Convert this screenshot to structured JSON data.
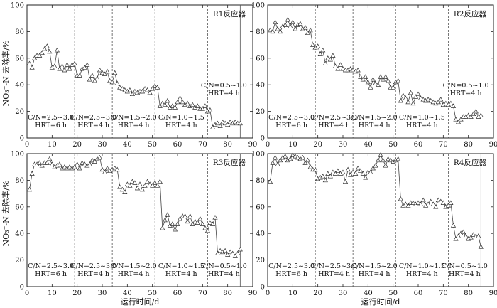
{
  "figure": {
    "ylabel": "NO₃⁻-N 去除率/%",
    "xlabel": "运行时间/d"
  },
  "chart_data": [
    {
      "type": "line",
      "title": "R1反应器",
      "xlim": [
        0,
        90
      ],
      "ylim": [
        0,
        100
      ],
      "xticks": [
        "0",
        "10",
        "20",
        "30",
        "40",
        "50",
        "60",
        "70",
        "80",
        "90"
      ],
      "yticks": [
        "0",
        "20",
        "40",
        "60",
        "80",
        "100"
      ],
      "phase_boundaries": [
        19,
        34,
        51,
        72,
        85
      ],
      "phases": [
        {
          "cn": "C/N=2.5~3.0",
          "hrt": "HRT=6 h",
          "x": 9.5,
          "y": 14
        },
        {
          "cn": "C/N=2.5~3.0",
          "hrt": "HRT=4 h",
          "x": 26.5,
          "y": 14
        },
        {
          "cn": "C/N=1.5~2.0",
          "hrt": "HRT=4 h",
          "x": 42.5,
          "y": 14
        },
        {
          "cn": "C/N=1.0~1.5",
          "hrt": "HRT=4 h",
          "x": 61.5,
          "y": 14
        },
        {
          "cn": "C/N=0.5~1.0",
          "hrt": "HRT=4 h",
          "x": 78.5,
          "y": 38
        }
      ],
      "series": [
        {
          "x": [
            1,
            2,
            3,
            4,
            5,
            6,
            7,
            8,
            9,
            10,
            11,
            12,
            13,
            14,
            15,
            16,
            17,
            18,
            19,
            20,
            21,
            22,
            23,
            24,
            25,
            26,
            27,
            28,
            29,
            30,
            31,
            32,
            33,
            34,
            35,
            36,
            37,
            38,
            39,
            40,
            41,
            42,
            43,
            44,
            45,
            46,
            47,
            48,
            49,
            50,
            51,
            52,
            53,
            54,
            55,
            56,
            57,
            58,
            59,
            60,
            61,
            62,
            63,
            64,
            65,
            66,
            67,
            68,
            69,
            70,
            71,
            72,
            73,
            74,
            75,
            76,
            77,
            78,
            79,
            80,
            81,
            82,
            83,
            84,
            85
          ],
          "y": [
            56,
            53,
            60,
            62,
            62,
            64,
            67,
            69,
            65,
            53,
            54,
            66,
            52,
            54,
            51,
            55,
            52,
            55,
            56,
            47,
            47,
            52,
            53,
            55,
            44,
            47,
            43,
            45,
            51,
            49,
            48,
            50,
            43,
            42,
            49,
            41,
            38,
            37,
            36,
            35,
            36,
            33,
            35,
            34,
            35,
            35,
            37,
            36,
            34,
            37,
            39,
            38,
            24,
            26,
            25,
            28,
            23,
            24,
            23,
            27,
            30,
            27,
            25,
            26,
            24,
            25,
            23,
            24,
            22,
            22,
            24,
            20,
            21,
            8,
            10,
            11,
            9,
            12,
            11,
            10,
            12,
            11,
            12,
            11,
            11
          ]
        }
      ]
    },
    {
      "type": "line",
      "title": "R2反应器",
      "xlim": [
        0,
        90
      ],
      "ylim": [
        0,
        100
      ],
      "xticks": [
        "0",
        "10",
        "20",
        "30",
        "40",
        "50",
        "60",
        "70",
        "80",
        "90"
      ],
      "yticks": [
        "0",
        "20",
        "40",
        "60",
        "80",
        "100"
      ],
      "phase_boundaries": [
        19,
        34,
        51,
        72
      ],
      "phases": [
        {
          "cn": "C/N=2.5~3.0",
          "hrt": "HRT=6 h",
          "x": 9.5,
          "y": 14
        },
        {
          "cn": "C/N=2.5~3.0",
          "hrt": "HRT=4 h",
          "x": 26.5,
          "y": 14
        },
        {
          "cn": "C/N=1.5~2.0",
          "hrt": "HRT=4 h",
          "x": 42.5,
          "y": 14
        },
        {
          "cn": "C/N=1.0~1.5",
          "hrt": "HRT=4 h",
          "x": 61.5,
          "y": 14
        },
        {
          "cn": "C/N=0.5~1.0",
          "hrt": "HRT=4 h",
          "x": 79,
          "y": 38
        }
      ],
      "series": [
        {
          "x": [
            1,
            2,
            3,
            4,
            5,
            6,
            7,
            8,
            9,
            10,
            11,
            12,
            13,
            14,
            15,
            16,
            17,
            18,
            19,
            20,
            21,
            22,
            23,
            24,
            25,
            26,
            27,
            28,
            29,
            30,
            31,
            32,
            33,
            34,
            35,
            36,
            37,
            38,
            39,
            40,
            41,
            42,
            43,
            44,
            45,
            46,
            47,
            48,
            49,
            50,
            51,
            52,
            53,
            54,
            55,
            56,
            57,
            58,
            59,
            60,
            61,
            62,
            63,
            64,
            65,
            66,
            67,
            68,
            69,
            70,
            71,
            72,
            73,
            74,
            75,
            76,
            77,
            78,
            79,
            80,
            81,
            82,
            83,
            84,
            85
          ],
          "y": [
            81,
            80,
            87,
            82,
            80,
            84,
            85,
            89,
            84,
            87,
            82,
            85,
            86,
            82,
            83,
            79,
            81,
            70,
            68,
            69,
            63,
            66,
            56,
            60,
            59,
            62,
            54,
            52,
            55,
            52,
            51,
            51,
            52,
            51,
            50,
            51,
            46,
            44,
            46,
            42,
            38,
            44,
            41,
            40,
            46,
            44,
            46,
            43,
            38,
            38,
            42,
            43,
            28,
            32,
            30,
            27,
            34,
            26,
            31,
            33,
            30,
            29,
            28,
            29,
            28,
            27,
            26,
            27,
            29,
            25,
            26,
            25,
            26,
            24,
            14,
            12,
            14,
            16,
            16,
            17,
            16,
            18,
            20,
            16,
            17
          ]
        }
      ]
    },
    {
      "type": "line",
      "title": "R3反应器",
      "xlim": [
        0,
        90
      ],
      "ylim": [
        0,
        100
      ],
      "xticks": [
        "0",
        "10",
        "20",
        "30",
        "40",
        "50",
        "60",
        "70",
        "80",
        "90"
      ],
      "yticks": [
        "0",
        "20",
        "40",
        "60",
        "80",
        "100"
      ],
      "phase_boundaries": [
        19,
        34,
        51,
        72,
        85
      ],
      "phases": [
        {
          "cn": "C/N=2.5~3.0",
          "hrt": "HRT=6 h",
          "x": 9.5,
          "y": 14
        },
        {
          "cn": "C/N=2.5~3.0",
          "hrt": "HRT=4 h",
          "x": 26.5,
          "y": 14
        },
        {
          "cn": "C/N=1.5~2.0",
          "hrt": "HRT=4 h",
          "x": 42.5,
          "y": 14
        },
        {
          "cn": "C/N=1.0~1.5",
          "hrt": "HRT=4 h",
          "x": 61.5,
          "y": 14
        },
        {
          "cn": "C/N=0.5~1.0",
          "hrt": "HRT=4 h",
          "x": 78.5,
          "y": 14
        }
      ],
      "series": [
        {
          "x": [
            1,
            2,
            3,
            4,
            5,
            6,
            7,
            8,
            9,
            10,
            11,
            12,
            13,
            14,
            15,
            16,
            17,
            18,
            19,
            20,
            21,
            22,
            23,
            24,
            25,
            26,
            27,
            28,
            29,
            30,
            31,
            32,
            33,
            34,
            35,
            36,
            37,
            38,
            39,
            40,
            41,
            42,
            43,
            44,
            45,
            46,
            47,
            48,
            49,
            50,
            51,
            52,
            53,
            54,
            55,
            56,
            57,
            58,
            59,
            60,
            61,
            62,
            63,
            64,
            65,
            66,
            67,
            68,
            69,
            70,
            71,
            72,
            73,
            74,
            75,
            76,
            77,
            78,
            79,
            80,
            81,
            82,
            83,
            84,
            85
          ],
          "y": [
            73,
            85,
            92,
            92,
            93,
            91,
            93,
            93,
            96,
            92,
            90,
            91,
            92,
            89,
            90,
            89,
            90,
            89,
            90,
            92,
            89,
            93,
            92,
            91,
            92,
            95,
            94,
            96,
            97,
            88,
            86,
            89,
            87,
            88,
            89,
            88,
            75,
            73,
            71,
            77,
            76,
            79,
            78,
            74,
            77,
            73,
            76,
            79,
            77,
            76,
            78,
            76,
            79,
            44,
            50,
            54,
            46,
            47,
            43,
            47,
            51,
            53,
            53,
            49,
            53,
            47,
            49,
            48,
            51,
            47,
            44,
            42,
            48,
            47,
            52,
            25,
            27,
            26,
            27,
            24,
            26,
            25,
            23,
            25,
            28
          ]
        }
      ]
    },
    {
      "type": "line",
      "title": "R4反应器",
      "xlim": [
        0,
        90
      ],
      "ylim": [
        0,
        100
      ],
      "xticks": [
        "0",
        "10",
        "20",
        "30",
        "40",
        "50",
        "60",
        "70",
        "80",
        "90"
      ],
      "yticks": [
        "0",
        "20",
        "40",
        "60",
        "80",
        "100"
      ],
      "phase_boundaries": [
        19,
        34,
        51,
        72,
        85
      ],
      "phases": [
        {
          "cn": "C/N=2.5~3.0",
          "hrt": "HRT=6 h",
          "x": 9.5,
          "y": 14
        },
        {
          "cn": "C/N=2.5~3.0",
          "hrt": "HRT=4 h",
          "x": 26.5,
          "y": 14
        },
        {
          "cn": "C/N=1.5~2.0",
          "hrt": "HRT=4 h",
          "x": 42.5,
          "y": 14
        },
        {
          "cn": "C/N=1.0~1.5",
          "hrt": "HRT=4 h",
          "x": 61.5,
          "y": 14
        },
        {
          "cn": "C/N=0.5~1.0",
          "hrt": "HRT=4 h",
          "x": 78.5,
          "y": 14
        }
      ],
      "series": [
        {
          "x": [
            1,
            2,
            3,
            4,
            5,
            6,
            7,
            8,
            9,
            10,
            11,
            12,
            13,
            14,
            15,
            16,
            17,
            18,
            19,
            20,
            21,
            22,
            23,
            24,
            25,
            26,
            27,
            28,
            29,
            30,
            31,
            32,
            33,
            34,
            35,
            36,
            37,
            38,
            39,
            40,
            41,
            42,
            43,
            44,
            45,
            46,
            47,
            48,
            49,
            50,
            51,
            52,
            53,
            54,
            55,
            56,
            57,
            58,
            59,
            60,
            61,
            62,
            63,
            64,
            65,
            66,
            67,
            68,
            69,
            70,
            71,
            72,
            73,
            74,
            75,
            76,
            77,
            78,
            79,
            80,
            81,
            82,
            83,
            84,
            85
          ],
          "y": [
            79,
            93,
            97,
            92,
            95,
            97,
            98,
            95,
            96,
            99,
            98,
            97,
            96,
            97,
            93,
            95,
            90,
            88,
            88,
            81,
            82,
            83,
            80,
            85,
            83,
            86,
            85,
            87,
            85,
            86,
            79,
            88,
            84,
            86,
            85,
            89,
            87,
            85,
            82,
            86,
            86,
            89,
            91,
            95,
            99,
            95,
            91,
            96,
            95,
            94,
            95,
            96,
            66,
            61,
            62,
            61,
            63,
            63,
            62,
            63,
            62,
            65,
            61,
            62,
            64,
            62,
            60,
            65,
            64,
            63,
            60,
            61,
            63,
            46,
            36,
            38,
            40,
            41,
            38,
            36,
            37,
            39,
            38,
            38,
            30
          ]
        }
      ]
    }
  ]
}
